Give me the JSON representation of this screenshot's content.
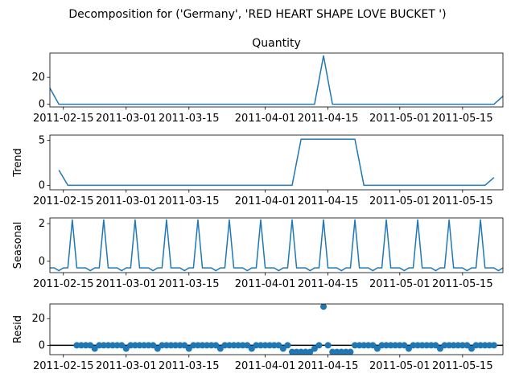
{
  "figure": {
    "suptitle": "Decomposition for ('Germany', 'RED HEART SHAPE LOVE BUCKET ')"
  },
  "colors": {
    "line": "#1f77b4",
    "axis": "#000000",
    "zero": "#000000"
  },
  "chart_data": [
    {
      "type": "line",
      "title": "Quantity",
      "ylabel": "",
      "x_range": [
        "2011-02-12",
        "2011-05-24"
      ],
      "x_ticks": [
        "2011-02-15",
        "2011-03-01",
        "2011-03-15",
        "2011-04-01",
        "2011-04-15",
        "2011-05-01",
        "2011-05-15"
      ],
      "y_ticks": [
        0,
        20
      ],
      "ylim": [
        -2,
        38
      ],
      "points": [
        {
          "x": "2011-02-12",
          "y": 12
        },
        {
          "x": "2011-02-14",
          "y": 0
        },
        {
          "x": "2011-04-12",
          "y": 0
        },
        {
          "x": "2011-04-14",
          "y": 36
        },
        {
          "x": "2011-04-16",
          "y": 0
        },
        {
          "x": "2011-05-22",
          "y": 0
        },
        {
          "x": "2011-05-24",
          "y": 6
        }
      ]
    },
    {
      "type": "line",
      "title": "",
      "ylabel": "Trend",
      "x_range": [
        "2011-02-12",
        "2011-05-24"
      ],
      "x_ticks": [
        "2011-02-15",
        "2011-03-01",
        "2011-03-15",
        "2011-04-01",
        "2011-04-15",
        "2011-05-01",
        "2011-05-15"
      ],
      "y_ticks": [
        0,
        5
      ],
      "ylim": [
        -0.5,
        5.6
      ],
      "points": [
        {
          "x": "2011-02-14",
          "y": 1.7
        },
        {
          "x": "2011-02-16",
          "y": 0
        },
        {
          "x": "2011-04-07",
          "y": 0
        },
        {
          "x": "2011-04-09",
          "y": 5.14
        },
        {
          "x": "2011-04-21",
          "y": 5.14
        },
        {
          "x": "2011-04-23",
          "y": 0
        },
        {
          "x": "2011-05-20",
          "y": 0
        },
        {
          "x": "2011-05-22",
          "y": 0.86
        }
      ]
    },
    {
      "type": "line",
      "title": "",
      "ylabel": "Seasonal",
      "x_range": [
        "2011-02-12",
        "2011-05-24"
      ],
      "x_ticks": [
        "2011-02-15",
        "2011-03-01",
        "2011-03-15",
        "2011-04-01",
        "2011-04-15",
        "2011-05-01",
        "2011-05-15"
      ],
      "y_ticks": [
        0,
        2
      ],
      "ylim": [
        -0.6,
        2.3
      ],
      "period": 7,
      "pattern": [
        -0.35,
        -0.35,
        -0.5,
        -0.35,
        -0.35,
        2.2,
        -0.35
      ],
      "start": "2011-02-12",
      "end": "2011-05-24"
    },
    {
      "type": "scatter",
      "title": "",
      "ylabel": "Resid",
      "x_range": [
        "2011-02-12",
        "2011-05-24"
      ],
      "x_ticks": [
        "2011-02-15",
        "2011-03-01",
        "2011-03-15",
        "2011-04-01",
        "2011-04-15",
        "2011-05-01",
        "2011-05-15"
      ],
      "y_ticks": [
        0,
        20
      ],
      "ylim": [
        -7,
        31
      ],
      "zero_line": true,
      "start": "2011-02-18",
      "end": "2011-05-22",
      "pattern": [
        0,
        0,
        0,
        0,
        -2.5,
        0,
        0
      ],
      "overrides": [
        {
          "x": "2011-04-07",
          "y": -5
        },
        {
          "x": "2011-04-08",
          "y": -5
        },
        {
          "x": "2011-04-09",
          "y": -5
        },
        {
          "x": "2011-04-10",
          "y": -5
        },
        {
          "x": "2011-04-11",
          "y": -5
        },
        {
          "x": "2011-04-14",
          "y": 29
        },
        {
          "x": "2011-04-16",
          "y": -5
        },
        {
          "x": "2011-04-17",
          "y": -5
        },
        {
          "x": "2011-04-18",
          "y": -5
        },
        {
          "x": "2011-04-19",
          "y": -5
        },
        {
          "x": "2011-04-20",
          "y": -5
        }
      ]
    }
  ]
}
